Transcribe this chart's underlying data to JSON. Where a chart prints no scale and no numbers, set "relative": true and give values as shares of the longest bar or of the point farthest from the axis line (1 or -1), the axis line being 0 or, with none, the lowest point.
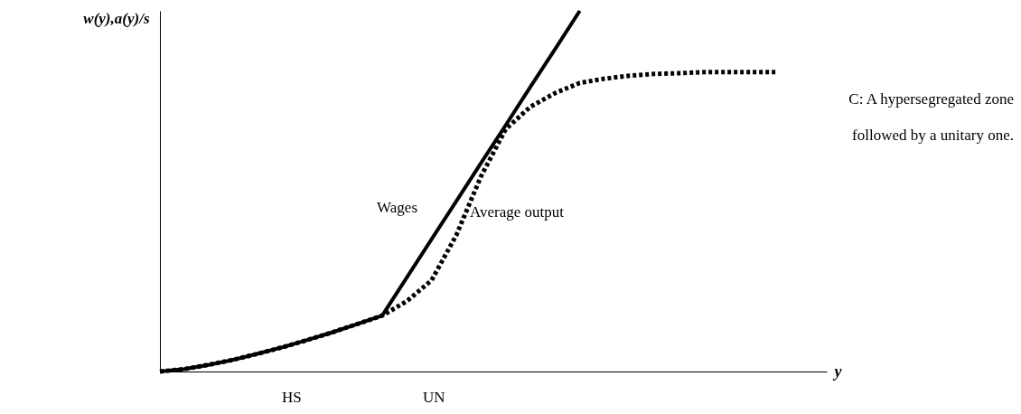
{
  "chart_data": {
    "type": "line",
    "relative": true,
    "tick_labels": false,
    "xlabel": "y",
    "ylabel": "w(y),a(y)/s",
    "categories": [
      null,
      null,
      null,
      null,
      null,
      null,
      null,
      null,
      null,
      null,
      null,
      null,
      null,
      null,
      null,
      null,
      null,
      null,
      null,
      null,
      null,
      null,
      null,
      null,
      null,
      null
    ],
    "series": [
      {
        "name": "Wages",
        "color": "#000000",
        "line_style": "solid",
        "values": [
          0,
          0.007,
          0.019,
          0.033,
          0.05,
          0.068,
          0.088,
          0.109,
          0.132,
          0.155,
          0.261,
          0.367,
          0.472,
          0.578,
          0.683,
          0.789,
          0.894,
          1.0,
          null,
          null,
          null,
          null,
          null,
          null,
          null,
          null
        ]
      },
      {
        "name": "Average output",
        "color": "#000000",
        "line_style": "dotted",
        "values": [
          0,
          0.007,
          0.019,
          0.033,
          0.05,
          0.068,
          0.088,
          0.109,
          0.132,
          0.155,
          0.195,
          0.253,
          0.378,
          0.541,
          0.672,
          0.734,
          0.772,
          0.8,
          0.812,
          0.82,
          0.825,
          0.827,
          0.83,
          0.83,
          0.83,
          0.83
        ]
      }
    ],
    "annotations": [
      "C: A hypersegregated zone",
      "followed by a unitary one.",
      "HS",
      "UN"
    ]
  }
}
